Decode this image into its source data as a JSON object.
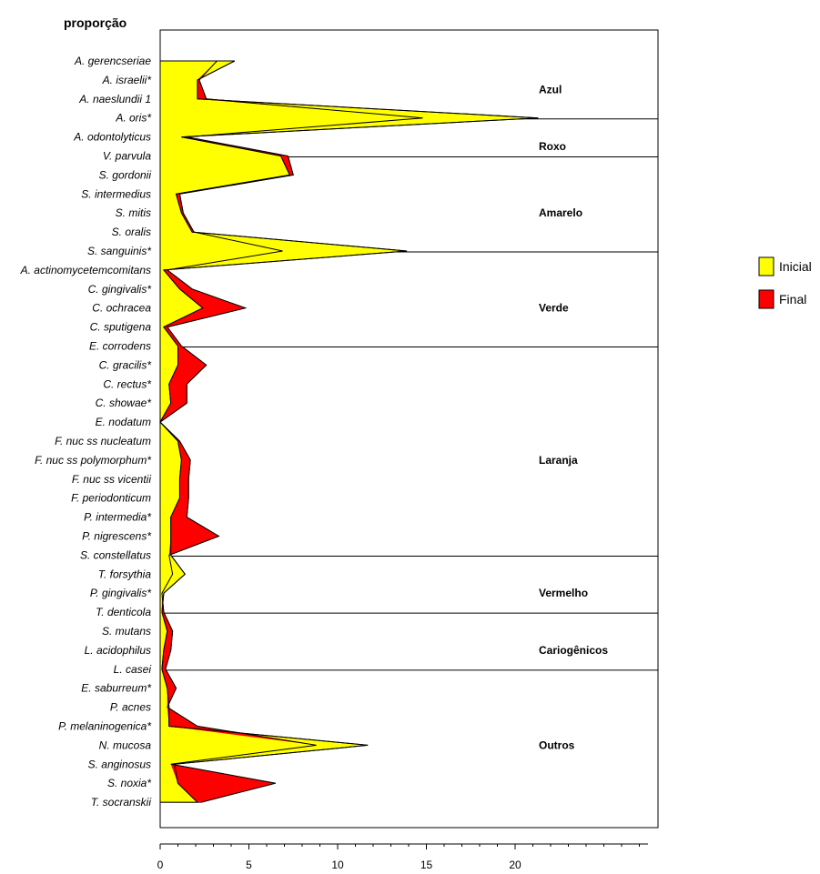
{
  "chart_data": {
    "type": "area",
    "title": "proporção",
    "xlim": [
      0,
      27.5
    ],
    "xticks": [
      0,
      5,
      10,
      15,
      20
    ],
    "grid": false,
    "legend_position": "right",
    "categories": [
      "A. gerencseriae",
      "A. israelii*",
      "A. naeslundii 1",
      "A. oris*",
      "A. odontolyticus",
      "V. parvula",
      "S. gordonii",
      "S. intermedius",
      "S. mitis",
      "S. oralis",
      "S. sanguinis*",
      "A. actinomycetemcomitans",
      "C. gingivalis*",
      "C. ochracea",
      "C. sputigena",
      "E. corrodens",
      "C. gracilis*",
      "C. rectus*",
      "C. showae*",
      "E. nodatum",
      "F. nuc ss nucleatum",
      "F. nuc ss polymorphum*",
      "F. nuc ss vicentii",
      "F. periodonticum",
      "P. intermedia*",
      "P. nigrescens*",
      "S. constellatus",
      "T. forsythia",
      "P. gingivalis*",
      "T. denticola",
      "S. mutans",
      "L. acidophilus",
      "L. casei",
      "E. saburreum*",
      "P. acnes",
      "P. melaninogenica*",
      "N. mucosa",
      "S. anginosus",
      "S. noxia*",
      "T. socranskii"
    ],
    "series": [
      {
        "name": "Inicial",
        "color": "#FFFF00",
        "values": [
          4.2,
          2.1,
          2.1,
          21.3,
          1.2,
          6.8,
          7.3,
          0.9,
          1.2,
          1.8,
          13.9,
          0.2,
          1.1,
          2.4,
          0.2,
          1.0,
          1.0,
          0.5,
          0.6,
          0.0,
          1.0,
          1.2,
          1.1,
          1.1,
          0.6,
          0.6,
          0.6,
          1.4,
          0.2,
          0.1,
          0.4,
          0.2,
          0.1,
          0.4,
          0.5,
          0.5,
          11.7,
          0.8,
          1.0,
          2.1
        ]
      },
      {
        "name": "Final",
        "color": "#FF0000",
        "values": [
          3.2,
          2.2,
          2.6,
          14.8,
          1.5,
          7.2,
          7.5,
          1.1,
          1.3,
          1.9,
          6.9,
          0.4,
          1.8,
          4.8,
          0.4,
          1.2,
          2.6,
          1.5,
          1.5,
          0.0,
          1.1,
          1.7,
          1.6,
          1.6,
          1.5,
          3.3,
          0.5,
          0.7,
          0.1,
          0.2,
          0.7,
          0.6,
          0.3,
          0.9,
          0.4,
          2.1,
          8.8,
          0.6,
          6.5,
          2.3
        ]
      }
    ],
    "groups": [
      {
        "label": "Azul",
        "start": 0,
        "end": 4
      },
      {
        "label": "Roxo",
        "start": 4,
        "end": 6
      },
      {
        "label": "Amarelo",
        "start": 6,
        "end": 11
      },
      {
        "label": "Verde",
        "start": 11,
        "end": 16
      },
      {
        "label": "Laranja",
        "start": 16,
        "end": 27
      },
      {
        "label": "Vermelho",
        "start": 27,
        "end": 30
      },
      {
        "label": "Cariogênicos",
        "start": 30,
        "end": 33
      },
      {
        "label": "Outros",
        "start": 33,
        "end": 40
      }
    ]
  }
}
